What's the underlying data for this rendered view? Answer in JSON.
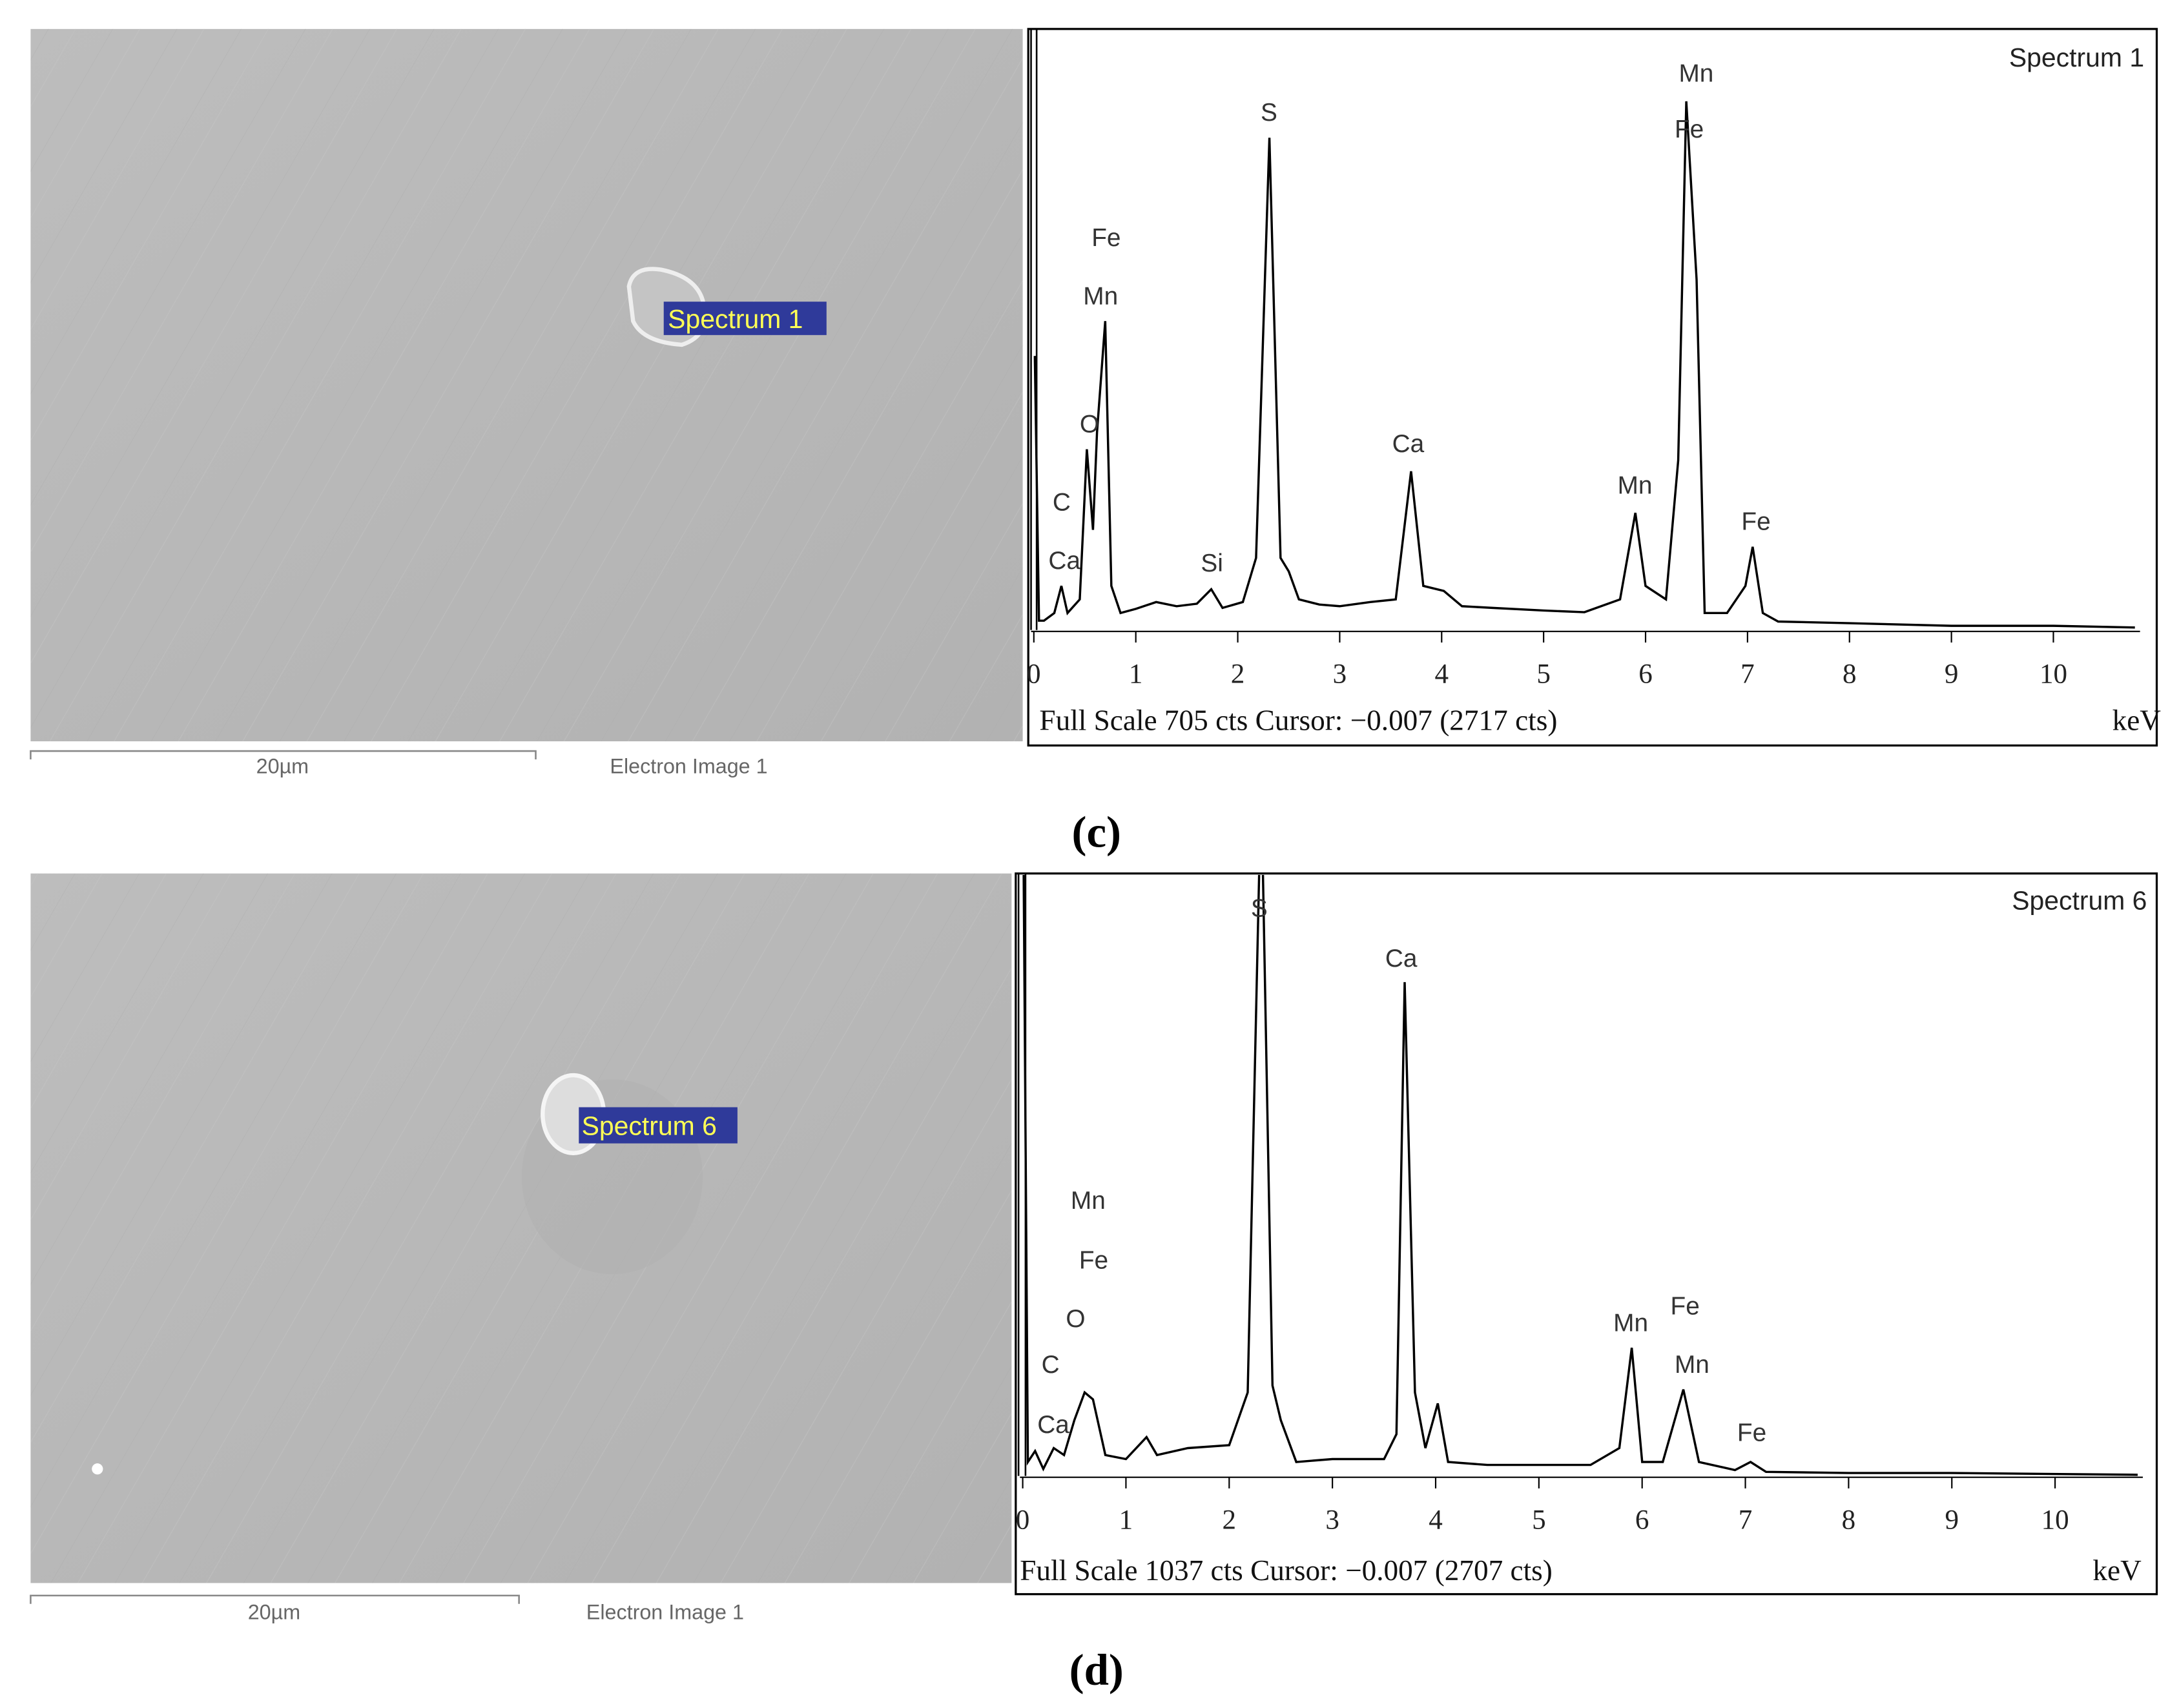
{
  "figure": {
    "panels": [
      {
        "caption": "(c)",
        "image": {
          "spot_label": "Spectrum 1",
          "scale_bar": "20µm",
          "title": "Electron Image 1"
        }
      },
      {
        "caption": "(d)",
        "image": {
          "spot_label": "Spectrum 6",
          "scale_bar": "20µm",
          "title": "Electron Image 1"
        }
      }
    ]
  },
  "chart_data": [
    {
      "type": "line",
      "title": "Spectrum 1",
      "x_label": "keV",
      "footer": "Full Scale 705 cts Cursor: −0.007 (2717 cts)",
      "peak_labels": [
        "Mn",
        "Fe",
        "S",
        "Fe",
        "Mn",
        "O",
        "C",
        "Ca",
        "Si",
        "Ca",
        "Mn",
        "Fe"
      ],
      "xlim": [
        0,
        10.85
      ],
      "ylim": [
        0,
        705
      ],
      "xticks": [
        0,
        1,
        2,
        3,
        4,
        5,
        6,
        7,
        8,
        9,
        10
      ],
      "color": "#000000",
      "x": [
        0.01,
        0.05,
        0.1,
        0.2,
        0.27,
        0.33,
        0.45,
        0.52,
        0.58,
        0.62,
        0.7,
        0.76,
        0.85,
        1.0,
        1.2,
        1.4,
        1.6,
        1.74,
        1.85,
        2.05,
        2.18,
        2.31,
        2.42,
        2.5,
        2.6,
        2.8,
        3.0,
        3.3,
        3.55,
        3.7,
        3.82,
        4.02,
        4.2,
        4.5,
        5.0,
        5.4,
        5.75,
        5.9,
        6.0,
        6.2,
        6.32,
        6.4,
        6.5,
        6.58,
        6.8,
        6.98,
        7.05,
        7.15,
        7.3,
        8.0,
        9.0,
        10.0,
        10.8
      ],
      "values": [
        323,
        11,
        11,
        20,
        52,
        20,
        36,
        213,
        118,
        233,
        364,
        52,
        20,
        25,
        33,
        28,
        31,
        48,
        26,
        33,
        85,
        580,
        85,
        69,
        36,
        30,
        28,
        33,
        36,
        187,
        52,
        46,
        28,
        26,
        23,
        21,
        36,
        138,
        52,
        36,
        200,
        623,
        413,
        20,
        20,
        52,
        98,
        20,
        10,
        8,
        5,
        5,
        3
      ]
    },
    {
      "type": "line",
      "title": "Spectrum 6",
      "x_label": "keV",
      "footer": "Full Scale 1037 cts Cursor: −0.007 (2707 cts)",
      "peak_labels": [
        "S",
        "Ca",
        "Mn",
        "Fe",
        "O",
        "C",
        "Ca",
        "Mn",
        "Fe",
        "Mn",
        "Fe"
      ],
      "xlim": [
        0,
        10.85
      ],
      "ylim": [
        0,
        1037
      ],
      "xticks": [
        0,
        1,
        2,
        3,
        4,
        5,
        6,
        7,
        8,
        9,
        10
      ],
      "color": "#000000",
      "x": [
        0.01,
        0.05,
        0.12,
        0.2,
        0.3,
        0.4,
        0.5,
        0.6,
        0.68,
        0.8,
        1.0,
        1.2,
        1.3,
        1.6,
        2.0,
        2.18,
        2.31,
        2.42,
        2.5,
        2.65,
        3.0,
        3.5,
        3.62,
        3.7,
        3.8,
        3.9,
        4.02,
        4.12,
        4.5,
        5.0,
        5.5,
        5.78,
        5.9,
        6.0,
        6.2,
        6.4,
        6.55,
        6.9,
        7.05,
        7.2,
        8.0,
        9.0,
        10.8
      ],
      "values": [
        1037,
        24,
        43,
        12,
        48,
        36,
        96,
        144,
        132,
        36,
        29,
        67,
        36,
        48,
        53,
        144,
        1200,
        156,
        96,
        24,
        29,
        29,
        72,
        852,
        144,
        48,
        125,
        24,
        19,
        19,
        19,
        48,
        221,
        24,
        24,
        149,
        24,
        10,
        24,
        7,
        5,
        5,
        2
      ]
    }
  ]
}
